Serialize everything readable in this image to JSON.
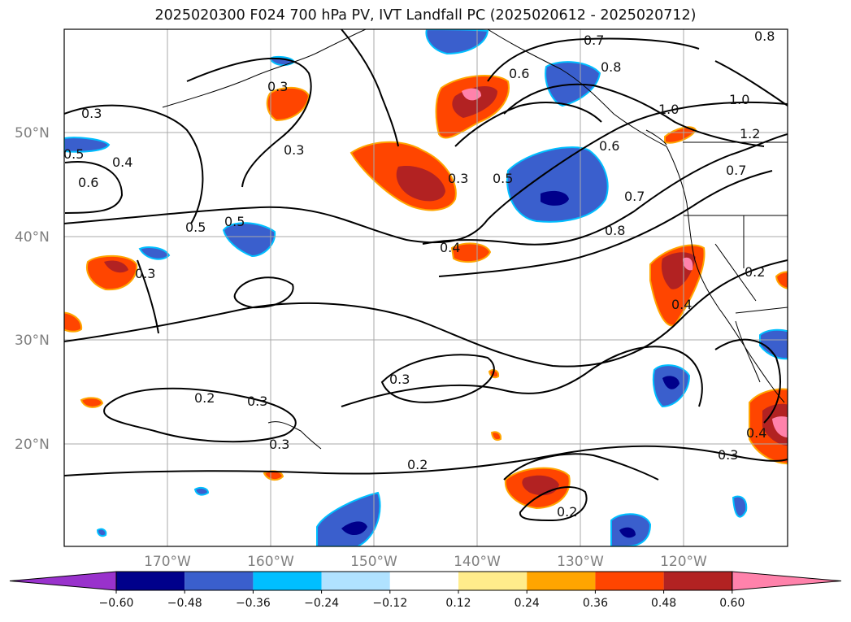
{
  "title": "2025020300 F024 700 hPa PV, IVT Landfall PC (2025020612 - 2025020712)",
  "lat_labels": [
    "50°N",
    "40°N",
    "30°N",
    "20°N"
  ],
  "lon_labels": [
    "170°W",
    "160°W",
    "150°W",
    "140°W",
    "130°W",
    "120°W"
  ],
  "colorbar": {
    "colors": [
      "#9932cc",
      "#00008b",
      "#3a5fcd",
      "#00bfff",
      "#b0e2ff",
      "#ffffff",
      "#ffec8b",
      "#ffa500",
      "#ff4500",
      "#b22222",
      "#ff82ab"
    ],
    "tick_labels": [
      "−0.60",
      "−0.48",
      "−0.36",
      "−0.24",
      "−0.12",
      "0.12",
      "0.24",
      "0.36",
      "0.48",
      "0.60"
    ]
  },
  "contour_labels": [
    "0.3",
    "0.5",
    "0.6",
    "0.4",
    "0.3",
    "0.5",
    "0.5",
    "0.3",
    "0.4",
    "0.3",
    "0.5",
    "0.6",
    "0.7",
    "0.8",
    "0.8",
    "1.0",
    "1.0",
    "0.7",
    "0.7",
    "0.8",
    "0.2",
    "0.4",
    "0.2",
    "0.3",
    "0.3",
    "0.2",
    "0.2",
    "0.3",
    "0.4",
    "0.3",
    "0.3",
    "1.2",
    "0.6"
  ]
}
